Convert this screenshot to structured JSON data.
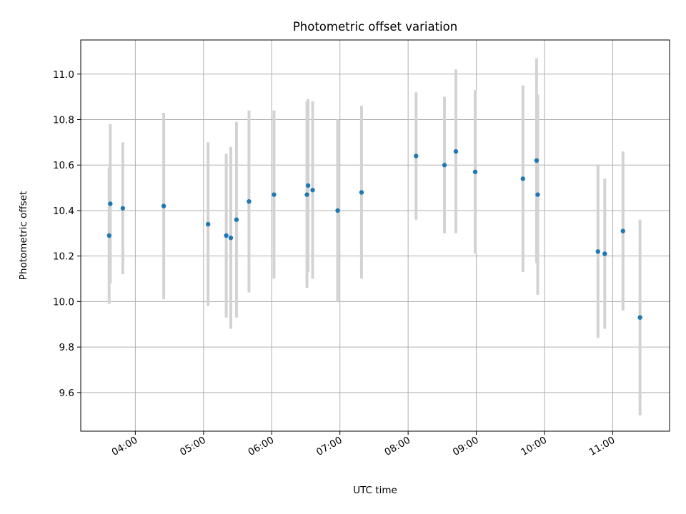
{
  "chart_data": {
    "type": "scatter",
    "title": "Photometric offset variation",
    "xlabel": "UTC time",
    "ylabel": "Photometric offset",
    "x_unit": "UTC time (HH:MM)",
    "xlim": [
      "03:12",
      "11:50"
    ],
    "ylim": [
      9.43,
      11.15
    ],
    "x_ticks": [
      "04:00",
      "05:00",
      "06:00",
      "07:00",
      "08:00",
      "09:00",
      "10:00",
      "11:00"
    ],
    "y_ticks": [
      "9.6",
      "9.8",
      "10.0",
      "10.2",
      "10.4",
      "10.6",
      "10.8",
      "11.0"
    ],
    "grid": true,
    "point_color": "#1f77b4",
    "errorbar_color": "#d3d3d3",
    "points": [
      {
        "x": "03:37",
        "y": 10.29,
        "yerr": 0.3
      },
      {
        "x": "03:38",
        "y": 10.43,
        "yerr": 0.35
      },
      {
        "x": "03:49",
        "y": 10.41,
        "yerr": 0.29
      },
      {
        "x": "04:25",
        "y": 10.42,
        "yerr": 0.41
      },
      {
        "x": "05:04",
        "y": 10.34,
        "yerr": 0.36
      },
      {
        "x": "05:20",
        "y": 10.29,
        "yerr": 0.36
      },
      {
        "x": "05:24",
        "y": 10.28,
        "yerr": 0.4
      },
      {
        "x": "05:29",
        "y": 10.36,
        "yerr": 0.43
      },
      {
        "x": "05:40",
        "y": 10.44,
        "yerr": 0.4
      },
      {
        "x": "06:02",
        "y": 10.47,
        "yerr": 0.37
      },
      {
        "x": "06:31",
        "y": 10.47,
        "yerr": 0.41
      },
      {
        "x": "06:32",
        "y": 10.51,
        "yerr": 0.38
      },
      {
        "x": "06:36",
        "y": 10.49,
        "yerr": 0.39
      },
      {
        "x": "06:58",
        "y": 10.4,
        "yerr": 0.4
      },
      {
        "x": "07:19",
        "y": 10.48,
        "yerr": 0.38
      },
      {
        "x": "08:07",
        "y": 10.64,
        "yerr": 0.28
      },
      {
        "x": "08:32",
        "y": 10.6,
        "yerr": 0.3
      },
      {
        "x": "08:42",
        "y": 10.66,
        "yerr": 0.36
      },
      {
        "x": "08:59",
        "y": 10.57,
        "yerr": 0.36
      },
      {
        "x": "09:41",
        "y": 10.54,
        "yerr": 0.41
      },
      {
        "x": "09:53",
        "y": 10.62,
        "yerr": 0.45
      },
      {
        "x": "09:54",
        "y": 10.47,
        "yerr": 0.44
      },
      {
        "x": "10:47",
        "y": 10.22,
        "yerr": 0.38
      },
      {
        "x": "10:53",
        "y": 10.21,
        "yerr": 0.33
      },
      {
        "x": "11:09",
        "y": 10.31,
        "yerr": 0.35
      },
      {
        "x": "11:24",
        "y": 9.93,
        "yerr": 0.43
      }
    ]
  }
}
